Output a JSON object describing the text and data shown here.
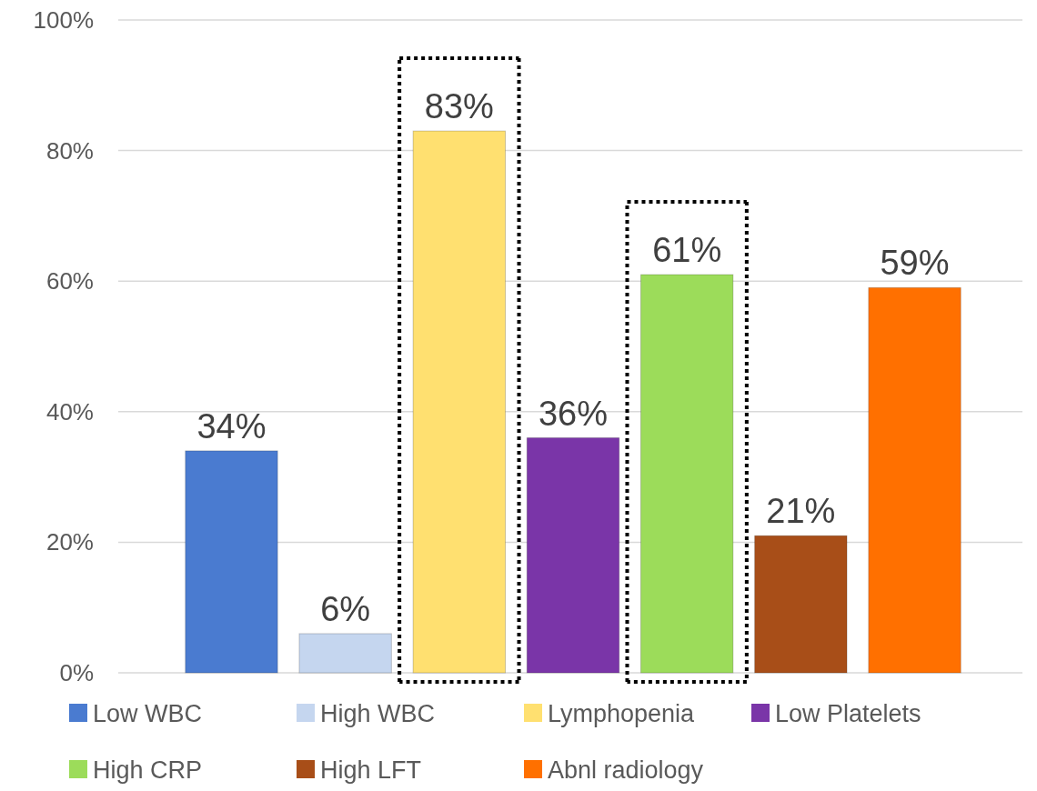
{
  "chart_data": {
    "type": "bar",
    "categories": [
      null
    ],
    "series": [
      {
        "name": "Low WBC",
        "color": "#4a7bd0",
        "values": [
          34
        ]
      },
      {
        "name": "High WBC",
        "color": "#c5d6ef",
        "values": [
          6
        ]
      },
      {
        "name": "Lymphopenia",
        "color": "#ffe070",
        "values": [
          83
        ]
      },
      {
        "name": "Low Platelets",
        "color": "#7a35a8",
        "values": [
          36
        ]
      },
      {
        "name": "High CRP",
        "color": "#9cdc5a",
        "values": [
          61
        ]
      },
      {
        "name": "High LFT",
        "color": "#a84e18",
        "values": [
          21
        ]
      },
      {
        "name": "Abnl radiology",
        "color": "#ff7000",
        "values": [
          59
        ]
      }
    ],
    "ylim": [
      0,
      100
    ],
    "yticks": [
      {
        "value": 0,
        "label": "0%"
      },
      {
        "value": 20,
        "label": "20%"
      },
      {
        "value": 40,
        "label": "40%"
      },
      {
        "value": 60,
        "label": "60%"
      },
      {
        "value": 80,
        "label": "80%"
      },
      {
        "value": 100,
        "label": "100%"
      }
    ],
    "value_labels": [
      [
        "34%"
      ],
      [
        "6%"
      ],
      [
        "83%"
      ],
      [
        "36%"
      ],
      [
        "61%"
      ],
      [
        "21%"
      ],
      [
        "59%"
      ]
    ],
    "grid": "y",
    "legend": "bottom"
  }
}
